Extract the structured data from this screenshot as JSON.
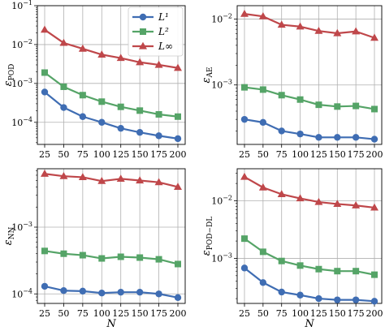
{
  "colors": {
    "L1": "#3f6db3",
    "L2": "#55a467",
    "Linf": "#bf474a"
  },
  "legend": [
    {
      "label": "L¹",
      "color": "#3f6db3",
      "marker": "circle"
    },
    {
      "label": "L²",
      "color": "#55a467",
      "marker": "square"
    },
    {
      "label": "L∞",
      "color": "#bf474a",
      "marker": "triangle"
    }
  ],
  "legend_placement": "top-right of top-left panel",
  "chart_data": [
    {
      "type": "line",
      "panel": "top-left",
      "yscale": "log",
      "grid": true,
      "xlabel": "",
      "ylabel": "ε_POD",
      "x": [
        25,
        50,
        75,
        100,
        125,
        150,
        175,
        200
      ],
      "xticks": [
        "25",
        "50",
        "75",
        "100",
        "125",
        "150",
        "175",
        "200"
      ],
      "ylim": [
        2.7e-05,
        0.1
      ],
      "yticks": [
        {
          "v": 0.0001,
          "b": "10",
          "e": "−4"
        },
        {
          "v": 0.001,
          "b": "10",
          "e": "−3"
        },
        {
          "v": 0.01,
          "b": "10",
          "e": "−2"
        },
        {
          "v": 0.1,
          "b": "10",
          "e": "−1"
        }
      ],
      "series": [
        {
          "name": "L¹",
          "values": [
            0.0006,
            0.00024,
            0.00014,
            0.0001,
            7e-05,
            5.5e-05,
            4.5e-05,
            3.8e-05
          ]
        },
        {
          "name": "L²",
          "values": [
            0.0019,
            0.00082,
            0.0005,
            0.00034,
            0.00025,
            0.0002,
            0.00016,
            0.00014
          ]
        },
        {
          "name": "L∞",
          "values": [
            0.024,
            0.011,
            0.0078,
            0.0055,
            0.0045,
            0.0035,
            0.003,
            0.0025
          ]
        }
      ]
    },
    {
      "type": "line",
      "panel": "top-right",
      "yscale": "log",
      "grid": true,
      "xlabel": "",
      "ylabel": "ε_AE",
      "x": [
        25,
        50,
        75,
        100,
        125,
        150,
        175,
        200
      ],
      "xticks": [
        "25",
        "50",
        "75",
        "100",
        "125",
        "150",
        "175",
        "200"
      ],
      "ylim": [
        0.000125,
        0.016
      ],
      "yticks": [
        {
          "v": 0.001,
          "b": "10",
          "e": "−3"
        },
        {
          "v": 0.01,
          "b": "10",
          "e": "−2"
        }
      ],
      "series": [
        {
          "name": "L¹",
          "values": [
            0.0003,
            0.00027,
            0.0002,
            0.00018,
            0.00016,
            0.00016,
            0.00016,
            0.00015
          ]
        },
        {
          "name": "L²",
          "values": [
            0.00092,
            0.00085,
            0.0007,
            0.0006,
            0.0005,
            0.00047,
            0.00048,
            0.00043
          ]
        },
        {
          "name": "L∞",
          "values": [
            0.012,
            0.011,
            0.0082,
            0.0077,
            0.0066,
            0.0061,
            0.0065,
            0.0052
          ]
        }
      ]
    },
    {
      "type": "line",
      "panel": "bottom-left",
      "yscale": "log",
      "grid": true,
      "xlabel": "N",
      "ylabel": "ε_NN",
      "x": [
        25,
        50,
        75,
        100,
        125,
        150,
        175,
        200
      ],
      "xticks": [
        "25",
        "50",
        "75",
        "100",
        "125",
        "150",
        "175",
        "200"
      ],
      "ylim": [
        7.2e-05,
        0.0075
      ],
      "yticks": [
        {
          "v": 0.0001,
          "b": "10",
          "e": "−4"
        },
        {
          "v": 0.001,
          "b": "10",
          "e": "−3"
        }
      ],
      "series": [
        {
          "name": "L¹",
          "values": [
            0.00013,
            0.000112,
            0.00011,
            0.000103,
            0.000106,
            0.000106,
            0.0001,
            8.8e-05
          ]
        },
        {
          "name": "L²",
          "values": [
            0.00044,
            0.0004,
            0.00038,
            0.00034,
            0.00036,
            0.00035,
            0.00033,
            0.00028
          ]
        },
        {
          "name": "L∞",
          "values": [
            0.0063,
            0.0058,
            0.0056,
            0.0049,
            0.0053,
            0.005,
            0.0047,
            0.004
          ]
        }
      ]
    },
    {
      "type": "line",
      "panel": "bottom-right",
      "yscale": "log",
      "grid": true,
      "xlabel": "N",
      "ylabel": "ε_POD−DL",
      "x": [
        25,
        50,
        75,
        100,
        125,
        150,
        175,
        200
      ],
      "xticks": [
        "25",
        "50",
        "75",
        "100",
        "125",
        "150",
        "175",
        "200"
      ],
      "ylim": [
        0.000165,
        0.036
      ],
      "yticks": [
        {
          "v": 0.001,
          "b": "10",
          "e": "−3"
        },
        {
          "v": 0.01,
          "b": "10",
          "e": "−2"
        }
      ],
      "series": [
        {
          "name": "L¹",
          "values": [
            0.00068,
            0.00038,
            0.00026,
            0.00023,
            0.0002,
            0.00019,
            0.00019,
            0.00018
          ]
        },
        {
          "name": "L²",
          "values": [
            0.0022,
            0.0013,
            0.0009,
            0.00075,
            0.00065,
            0.0006,
            0.0006,
            0.00052
          ]
        },
        {
          "name": "L∞",
          "values": [
            0.026,
            0.017,
            0.013,
            0.011,
            0.0095,
            0.0088,
            0.0083,
            0.0076
          ]
        }
      ]
    }
  ]
}
